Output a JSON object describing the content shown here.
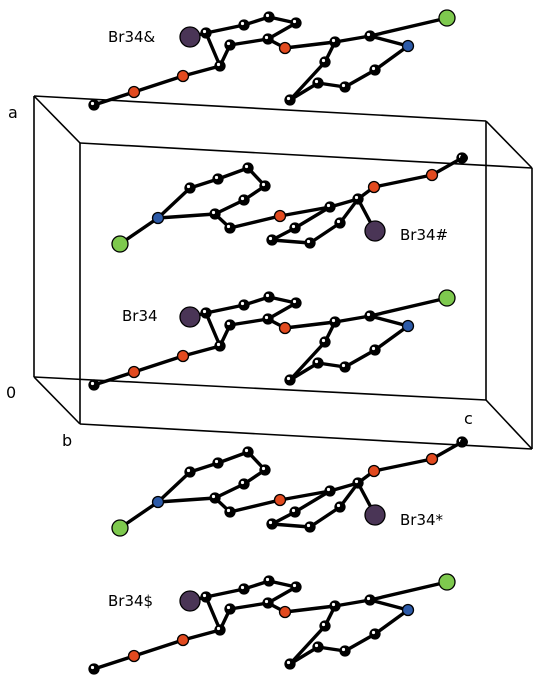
{
  "figure": {
    "type": "crystal packing diagram",
    "axis_labels": {
      "a": "a",
      "b": "b",
      "c": "c",
      "origin": "0"
    },
    "atom_labels": [
      "Br34&",
      "Br34#",
      "Br34",
      "Br34*",
      "Br34$"
    ],
    "colors": {
      "bromine": "#4a3556",
      "chlorine": "#7ec94e",
      "oxygen": "#e24a1f",
      "nitrogen": "#2c5aa8",
      "carbon": "#000000",
      "hydrogen": "#ffffff"
    }
  }
}
